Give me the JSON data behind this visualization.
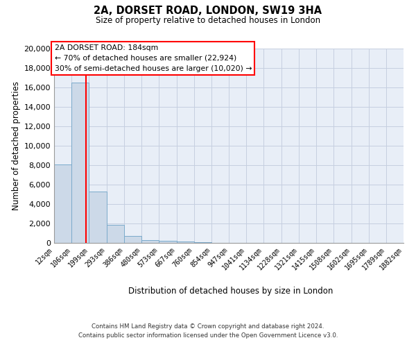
{
  "title": "2A, DORSET ROAD, LONDON, SW19 3HA",
  "subtitle": "Size of property relative to detached houses in London",
  "xlabel": "Distribution of detached houses by size in London",
  "ylabel": "Number of detached properties",
  "bar_color": "#ccd9e8",
  "bar_edge_color": "#7aaacb",
  "grid_color": "#c5cfe0",
  "bg_color": "#e8eef7",
  "red_line_x": 184,
  "annotation_title": "2A DORSET ROAD: 184sqm",
  "annotation_line1": "← 70% of detached houses are smaller (22,924)",
  "annotation_line2": "30% of semi-detached houses are larger (10,020) →",
  "bin_edges": [
    12,
    106,
    199,
    293,
    386,
    480,
    573,
    667,
    760,
    854,
    947,
    1041,
    1134,
    1228,
    1321,
    1415,
    1508,
    1602,
    1695,
    1789,
    1882
  ],
  "bin_labels": [
    "12sqm",
    "106sqm",
    "199sqm",
    "293sqm",
    "386sqm",
    "480sqm",
    "573sqm",
    "667sqm",
    "760sqm",
    "854sqm",
    "947sqm",
    "1041sqm",
    "1134sqm",
    "1228sqm",
    "1321sqm",
    "1415sqm",
    "1508sqm",
    "1602sqm",
    "1695sqm",
    "1789sqm",
    "1882sqm"
  ],
  "bar_heights": [
    8100,
    16500,
    5300,
    1850,
    750,
    320,
    200,
    130,
    80,
    0,
    0,
    0,
    0,
    0,
    0,
    0,
    0,
    0,
    0,
    0
  ],
  "ylim": [
    0,
    20000
  ],
  "yticks": [
    0,
    2000,
    4000,
    6000,
    8000,
    10000,
    12000,
    14000,
    16000,
    18000,
    20000
  ],
  "footer_line1": "Contains HM Land Registry data © Crown copyright and database right 2024.",
  "footer_line2": "Contains public sector information licensed under the Open Government Licence v3.0."
}
